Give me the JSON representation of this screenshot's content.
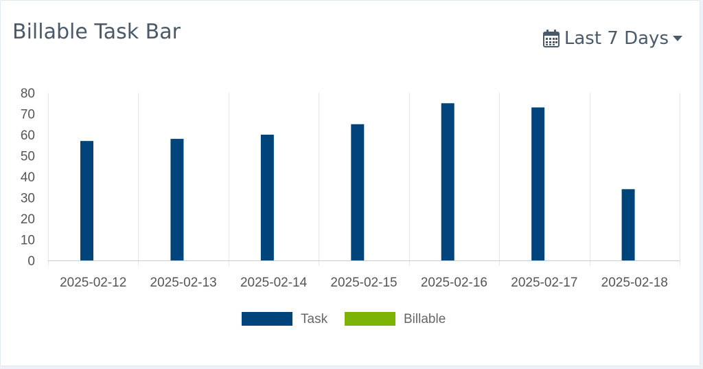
{
  "card": {
    "title": "Billable Task Bar",
    "range_label": "Last 7 Days",
    "range_icon": "calendar-icon",
    "dropdown_icon": "caret-down-icon"
  },
  "colors": {
    "task": "#00447c",
    "billable": "#7cb305",
    "grid": "#e6e6e6",
    "axis": "#cccccc"
  },
  "chart_data": {
    "type": "bar",
    "categories": [
      "2025-02-12",
      "2025-02-13",
      "2025-02-14",
      "2025-02-15",
      "2025-02-16",
      "2025-02-17",
      "2025-02-18"
    ],
    "series": [
      {
        "name": "Task",
        "values": [
          57,
          58,
          60,
          65,
          75,
          73,
          34
        ]
      },
      {
        "name": "Billable",
        "values": [
          0,
          0,
          0,
          0,
          0,
          0,
          0
        ]
      }
    ],
    "ylim": [
      0,
      80
    ],
    "yticks": [
      0,
      10,
      20,
      30,
      40,
      50,
      60,
      70,
      80
    ],
    "grid": true,
    "legend": "bottom"
  }
}
